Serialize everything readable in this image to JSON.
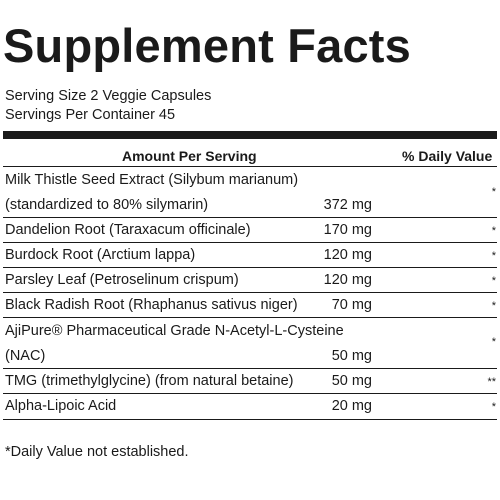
{
  "title": "Supplement Facts",
  "serving_size": "Serving Size 2 Veggie Capsules",
  "servings_per_container": "Servings Per Container 45",
  "header": {
    "amount_per_serving": "Amount Per Serving",
    "daily_value": "% Daily Value"
  },
  "ingredients": [
    {
      "line1": "Milk Thistle Seed Extract (Silybum marianum)",
      "line2": "(standardized to 80% silymarin)",
      "amount": "372 mg",
      "dv": "*"
    },
    {
      "line1": "Dandelion Root (Taraxacum officinale)",
      "amount": "170 mg",
      "dv": "*"
    },
    {
      "line1": "Burdock Root (Arctium lappa)",
      "amount": "120 mg",
      "dv": "*"
    },
    {
      "line1": "Parsley Leaf (Petroselinum crispum)",
      "amount": "120 mg",
      "dv": "*"
    },
    {
      "line1": "Black Radish Root (Rhaphanus sativus niger)",
      "amount": "70 mg",
      "dv": "*"
    },
    {
      "line1": "AjiPure® Pharmaceutical Grade N-Acetyl-L-Cysteine",
      "line2": "(NAC)",
      "amount": "50 mg",
      "dv": "*"
    },
    {
      "line1": "TMG (trimethylglycine) (from natural betaine)",
      "amount": "50 mg",
      "dv": "**"
    },
    {
      "line1": "Alpha-Lipoic Acid",
      "amount": "20 mg",
      "dv": "*"
    }
  ],
  "footnote": "*Daily Value not established."
}
